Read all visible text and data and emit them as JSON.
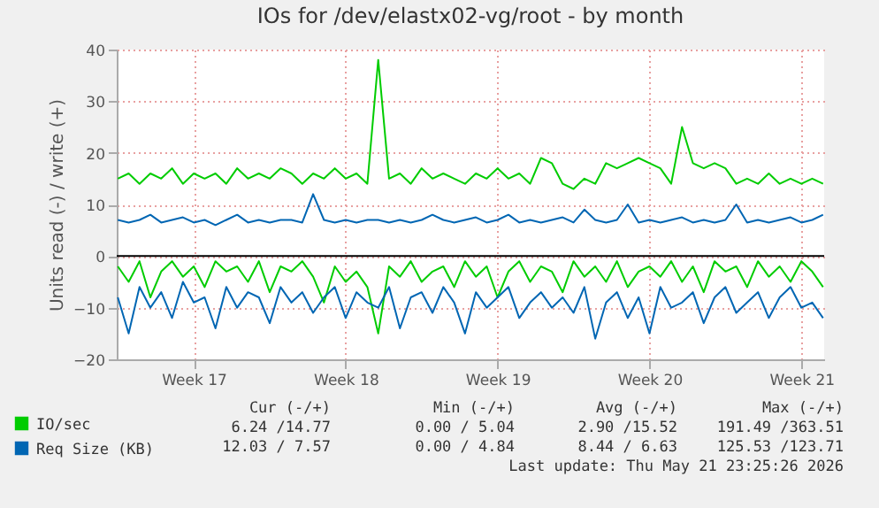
{
  "chart_data": {
    "type": "line",
    "title": "IOs for /dev/elastx02-vg/root - by month",
    "ylabel": "Units read (-) / write (+)",
    "categories": [
      null,
      null,
      null,
      null,
      null,
      null,
      null,
      "Week 17",
      null,
      null,
      null,
      null,
      null,
      null,
      null,
      null,
      null,
      null,
      null,
      null,
      null,
      "Week 18",
      null,
      null,
      null,
      null,
      null,
      null,
      null,
      null,
      null,
      null,
      null,
      null,
      null,
      "Week 19",
      null,
      null,
      null,
      null,
      null,
      null,
      null,
      null,
      null,
      null,
      null,
      null,
      null,
      "Week 20",
      null,
      null,
      null,
      null,
      null,
      null,
      null,
      null,
      null,
      null,
      null,
      null,
      null,
      "Week 21",
      null,
      null
    ],
    "series": [
      {
        "name": "IO/sec",
        "color": "#00cc00",
        "values": [
          15,
          16,
          14,
          16,
          15,
          17,
          14,
          16,
          15,
          16,
          14,
          17,
          15,
          16,
          15,
          17,
          16,
          14,
          16,
          15,
          17,
          15,
          16,
          14,
          38,
          15,
          16,
          14,
          17,
          15,
          16,
          15,
          14,
          16,
          15,
          17,
          15,
          16,
          14,
          19,
          18,
          14,
          13,
          15,
          14,
          18,
          17,
          18,
          19,
          18,
          17,
          14,
          25,
          18,
          17,
          18,
          17,
          14,
          15,
          14,
          16,
          14,
          15,
          14,
          15,
          14
        ]
      },
      {
        "name": "Req Size (KB)",
        "color": "#0066b3",
        "values": [
          7,
          6.5,
          7,
          8,
          6.5,
          7,
          7.5,
          6.5,
          7,
          6,
          7,
          8,
          6.5,
          7,
          6.5,
          7,
          7,
          6.5,
          12,
          7,
          6.5,
          7,
          6.5,
          7,
          7,
          6.5,
          7,
          6.5,
          7,
          8,
          7,
          6.5,
          7,
          7.5,
          6.5,
          7,
          8,
          6.5,
          7,
          6.5,
          7,
          7.5,
          6.5,
          9,
          7,
          6.5,
          7,
          10,
          6.5,
          7,
          6.5,
          7,
          7.5,
          6.5,
          7,
          6.5,
          7,
          10,
          6.5,
          7,
          6.5,
          7,
          7.5,
          6.5,
          7,
          8
        ]
      },
      {
        "color": "#00cc00",
        "values": [
          -2,
          -5,
          -1,
          -8,
          -3,
          -1,
          -4,
          -2,
          -6,
          -1,
          -3,
          -2,
          -5,
          -1,
          -7,
          -2,
          -3,
          -1,
          -4,
          -9,
          -2,
          -5,
          -3,
          -6,
          -15,
          -2,
          -4,
          -1,
          -5,
          -3,
          -2,
          -6,
          -1,
          -4,
          -2,
          -8,
          -3,
          -1,
          -5,
          -2,
          -3,
          -7,
          -1,
          -4,
          -2,
          -5,
          -1,
          -6,
          -3,
          -2,
          -4,
          -1,
          -5,
          -2,
          -7,
          -1,
          -3,
          -2,
          -6,
          -1,
          -4,
          -2,
          -5,
          -1,
          -3,
          -6
        ]
      },
      {
        "color": "#0066b3",
        "values": [
          -8,
          -15,
          -6,
          -10,
          -7,
          -12,
          -5,
          -9,
          -8,
          -14,
          -6,
          -10,
          -7,
          -8,
          -13,
          -6,
          -9,
          -7,
          -11,
          -8,
          -6,
          -12,
          -7,
          -9,
          -10,
          -6,
          -14,
          -8,
          -7,
          -11,
          -6,
          -9,
          -15,
          -7,
          -10,
          -8,
          -6,
          -12,
          -9,
          -7,
          -10,
          -8,
          -11,
          -6,
          -16,
          -9,
          -7,
          -12,
          -8,
          -15,
          -6,
          -10,
          -9,
          -7,
          -13,
          -8,
          -6,
          -11,
          -9,
          -7,
          -12,
          -8,
          -6,
          -10,
          -9,
          -12
        ]
      }
    ],
    "ylim": [
      -20,
      40
    ],
    "yticks": [
      -20,
      -10,
      0,
      10,
      20,
      30,
      40
    ],
    "ref_lines": [
      {
        "axis": "y",
        "value": 0,
        "color": "#000000"
      }
    ],
    "grid": true,
    "legend": "bottom left",
    "marker": "none",
    "line_style": "solid",
    "annotations": [
      "Cur (-/+)",
      "Min (-/+)",
      "Avg (-/+)",
      "Max (-/+)",
      "6.24 /14.77",
      "0.00 / 5.04",
      "2.90 /15.52",
      "191.49 /363.51",
      "12.03 / 7.57",
      "0.00 / 4.84",
      "8.44 / 6.63",
      "125.53 /123.71",
      "Last update: Thu May 21 23:25:26 2026"
    ]
  }
}
